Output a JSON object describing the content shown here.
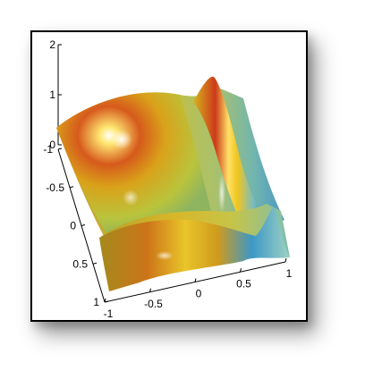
{
  "chart_data": {
    "type": "surface",
    "title": "",
    "xlabel": "",
    "ylabel": "",
    "zlabel": "",
    "x_ticks": [
      "-1",
      "-0.5",
      "0",
      "0.5",
      "1"
    ],
    "y_ticks": [
      "-1",
      "-0.5",
      "0",
      "0.5",
      "1"
    ],
    "z_ticks": [
      "0",
      "1",
      "2"
    ],
    "xlim": [
      -1,
      1
    ],
    "ylim": [
      -1,
      1
    ],
    "zlim": [
      0,
      2
    ],
    "grid": false,
    "colormap": [
      "#1f7fbf",
      "#67c0cf",
      "#b9d36a",
      "#e0d21d",
      "#f0b000",
      "#d8431f",
      "#fff2a0"
    ],
    "surface_features": [
      {
        "name": "broad-hump",
        "x": -0.6,
        "y": -0.6,
        "z_max": 1.1
      },
      {
        "name": "ridge",
        "x": 0.5,
        "y": -0.5,
        "z_max": 1.45
      },
      {
        "name": "front-ridge",
        "x": 0.55,
        "y": 0.55,
        "z_max": 0.75
      }
    ]
  }
}
